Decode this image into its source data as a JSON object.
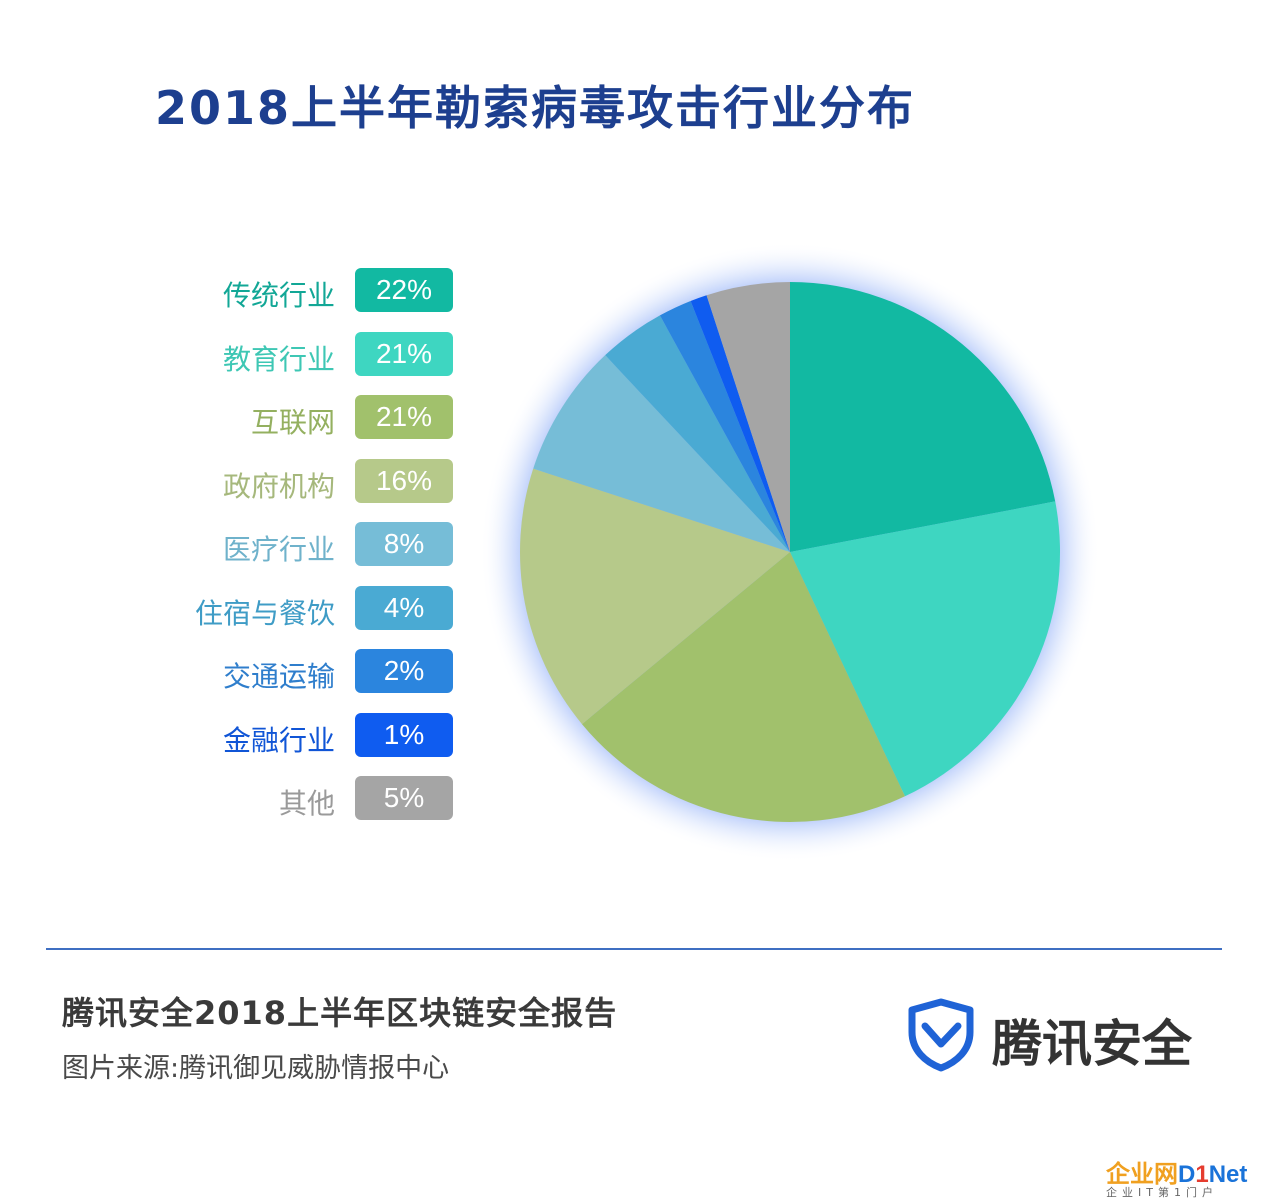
{
  "title": "2018上半年勒索病毒攻击行业分布",
  "chart_data": {
    "type": "pie",
    "title": "2018上半年勒索病毒攻击行业分布",
    "slices": [
      {
        "label": "传统行业",
        "value": 22,
        "value_label": "22%",
        "color": "#12b9a2",
        "label_color": "#12a796"
      },
      {
        "label": "教育行业",
        "value": 21,
        "value_label": "21%",
        "color": "#3ed6c1",
        "label_color": "#3ec7b4"
      },
      {
        "label": "互联网",
        "value": 21,
        "value_label": "21%",
        "color": "#a1c16c",
        "label_color": "#94b060"
      },
      {
        "label": "政府机构",
        "value": 16,
        "value_label": "16%",
        "color": "#b6c98a",
        "label_color": "#a6b87c"
      },
      {
        "label": "医疗行业",
        "value": 8,
        "value_label": "8%",
        "color": "#76bdd7",
        "label_color": "#6fb2cb"
      },
      {
        "label": "住宿与餐饮",
        "value": 4,
        "value_label": "4%",
        "color": "#4aaad3",
        "label_color": "#3f9cc6"
      },
      {
        "label": "交通运输",
        "value": 2,
        "value_label": "2%",
        "color": "#2b85de",
        "label_color": "#2f7ecc"
      },
      {
        "label": "金融行业",
        "value": 1,
        "value_label": "1%",
        "color": "#0f5cf0",
        "label_color": "#1055d6"
      },
      {
        "label": "其他",
        "value": 5,
        "value_label": "5%",
        "color": "#a5a5a5",
        "label_color": "#9a9a9a"
      }
    ]
  },
  "footer": {
    "report_title": "腾讯安全2018上半年区块链安全报告",
    "source": "图片来源:腾讯御见威胁情报中心"
  },
  "brand": {
    "name": "腾讯安全",
    "icon": "shield-check-icon",
    "color": "#1f63d6"
  },
  "watermark": {
    "cn": "企业网",
    "d": "D",
    "one": "1",
    "net": "Net",
    "sub": "企业IT第1门户"
  }
}
